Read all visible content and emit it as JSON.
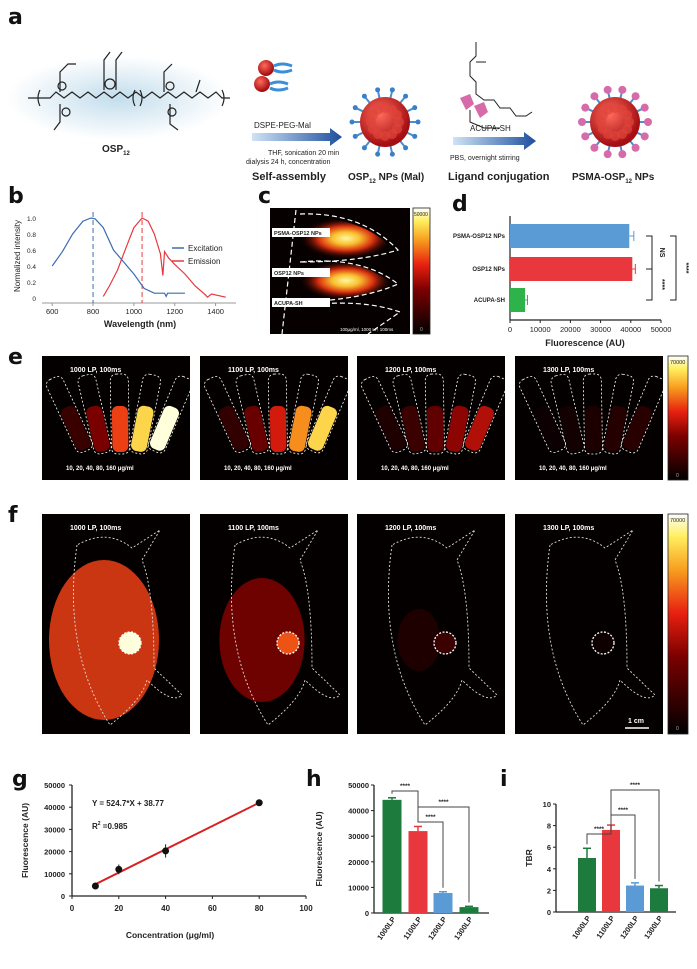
{
  "panels": {
    "a": "a",
    "b": "b",
    "c": "c",
    "d": "d",
    "e": "e",
    "f": "f",
    "g": "g",
    "h": "h",
    "i": "i"
  },
  "scheme": {
    "polymer_label": "OSP",
    "polymer_sub": "12",
    "step1_reagent": "DSPE-PEG-Mal",
    "step1_cond1": "THF, sonication 20 min",
    "step1_cond2": "dialysis 24 h, concentration",
    "step1_name": "Self-assembly",
    "np_mal_label": "OSP",
    "np_mal_sub": "12",
    "np_mal_suffix": " NPs (Mal)",
    "step2_reagent": "ACUPA-SH",
    "step2_cond": "PBS, overnight stirring",
    "step2_name": "Ligand conjugation",
    "final_label": "PSMA-OSP",
    "final_sub": "12",
    "final_suffix": " NPs"
  },
  "panel_c": {
    "labels": [
      "PSMA-OSP12 NPs",
      "OSP12 NPs",
      "ACUPA-SH"
    ],
    "caption": "100μg/ml, 1000 LP, 100ms",
    "colorbar_max": "50000",
    "colorbar_min": "0"
  },
  "panel_e": {
    "titles": [
      "1000 LP, 100ms",
      "1100 LP, 100ms",
      "1200 LP, 100ms",
      "1300 LP, 100ms"
    ],
    "caption": "10, 20, 40, 80, 160 μg/ml",
    "intensity": [
      1.0,
      0.85,
      0.45,
      0.1
    ],
    "colorbar_max": "70000",
    "colorbar_min": "0"
  },
  "panel_f": {
    "titles": [
      "1000 LP, 100ms",
      "1100 LP, 100ms",
      "1200 LP, 100ms",
      "1300 LP, 100ms"
    ],
    "intensity": [
      1.0,
      0.6,
      0.15,
      0.02
    ],
    "scale_bar": "1 cm",
    "colorbar_max": "70000",
    "colorbar_min": "0"
  },
  "colors": {
    "blue": "#3d6cb3",
    "red": "#e8383d",
    "green": "#1e7b3e",
    "lightblue": "#5b9bd5",
    "barGreen": "#2db34a"
  },
  "chart_data": [
    {
      "id": "b",
      "type": "line",
      "xlabel": "Wavelength (nm)",
      "ylabel": "Normalized intensity",
      "xlim": [
        550,
        1500
      ],
      "ylim": [
        0,
        1.05
      ],
      "xticks": [
        600,
        800,
        1000,
        1200,
        1400
      ],
      "yticks": [
        0,
        0.2,
        0.4,
        0.6,
        0.8,
        1.0
      ],
      "ytick_labels": [
        "0",
        "0.2",
        "0.4",
        "0.6",
        "0.8",
        "1.0"
      ],
      "legend": "top-right",
      "vlines": [
        800,
        1040
      ],
      "series": [
        {
          "name": "Excitation",
          "color": "#3d6cb3",
          "x": [
            600,
            650,
            700,
            750,
            790,
            810,
            850,
            900,
            950,
            1000,
            1050,
            1100,
            1150,
            1158,
            1165,
            1250
          ],
          "y": [
            0.4,
            0.58,
            0.8,
            0.96,
            1.0,
            0.99,
            0.88,
            0.6,
            0.45,
            0.3,
            0.12,
            0.06,
            0.06,
            0.02,
            0.06,
            0.06
          ]
        },
        {
          "name": "Emission",
          "color": "#e8383d",
          "x": [
            850,
            880,
            920,
            960,
            1000,
            1040,
            1070,
            1100,
            1130,
            1142,
            1150,
            1170,
            1200,
            1250,
            1300,
            1350,
            1360,
            1380,
            1450
          ],
          "y": [
            0.02,
            0.15,
            0.35,
            0.62,
            0.88,
            1.0,
            0.96,
            0.8,
            0.55,
            0.28,
            0.58,
            0.5,
            0.42,
            0.3,
            0.15,
            0.04,
            0.01,
            0.05,
            0.01
          ]
        }
      ]
    },
    {
      "id": "d",
      "type": "bar",
      "orientation": "horizontal",
      "xlabel": "Fluorescence (AU)",
      "categories": [
        "PSMA-OSP12 NPs",
        "OSP12 NPs",
        "ACUPA-SH"
      ],
      "values": [
        39500,
        40500,
        5000
      ],
      "errors": [
        1500,
        1000,
        800
      ],
      "bar_colors": [
        "#5b9bd5",
        "#e8383d",
        "#2db34a"
      ],
      "xlim": [
        0,
        50000
      ],
      "xticks": [
        0,
        10000,
        20000,
        30000,
        40000,
        50000
      ],
      "significance": [
        {
          "pair": [
            0,
            1
          ],
          "label": "NS"
        },
        {
          "pair": [
            1,
            2
          ],
          "label": "****"
        },
        {
          "pair": [
            0,
            2
          ],
          "label": "****"
        }
      ]
    },
    {
      "id": "g",
      "type": "scatter",
      "xlabel": "Concentration (μg/ml)",
      "ylabel": "Fluorescence (AU)",
      "xlim": [
        0,
        100
      ],
      "ylim": [
        0,
        50000
      ],
      "xticks": [
        0,
        20,
        40,
        60,
        80,
        100
      ],
      "yticks": [
        0,
        10000,
        20000,
        30000,
        40000,
        50000
      ],
      "x": [
        10,
        20,
        40,
        80
      ],
      "y": [
        4500,
        12000,
        20300,
        42000
      ],
      "errors": [
        400,
        2200,
        3000,
        500
      ],
      "fit": {
        "slope": 524.7,
        "intercept": 38.77,
        "color": "#d62020"
      },
      "equation": "Y = 524.7*X + 38.77",
      "r2_label": "R",
      "r2_value": " =0.985"
    },
    {
      "id": "h",
      "type": "bar",
      "ylabel": "Fluorescence (AU)",
      "categories": [
        "1000LP",
        "1100LP",
        "1200LP",
        "1300LP"
      ],
      "values": [
        44200,
        32000,
        7800,
        2300
      ],
      "errors": [
        800,
        1800,
        500,
        300
      ],
      "bar_colors": [
        "#1e7b3e",
        "#e8383d",
        "#5b9bd5",
        "#1e7b3e"
      ],
      "ylim": [
        0,
        50000
      ],
      "yticks": [
        0,
        10000,
        20000,
        30000,
        40000,
        50000
      ],
      "significance": [
        {
          "pair": [
            0,
            1
          ],
          "label": "****"
        },
        {
          "pair": [
            1,
            2
          ],
          "label": "****"
        },
        {
          "pair": [
            1,
            3
          ],
          "label": "****"
        }
      ]
    },
    {
      "id": "i",
      "type": "bar",
      "ylabel": "TBR",
      "categories": [
        "1000LP",
        "1100LP",
        "1200LP",
        "1300LP"
      ],
      "values": [
        5.0,
        7.6,
        2.45,
        2.2
      ],
      "errors": [
        0.9,
        0.45,
        0.25,
        0.25
      ],
      "bar_colors": [
        "#1e7b3e",
        "#e8383d",
        "#5b9bd5",
        "#1e7b3e"
      ],
      "ylim": [
        0,
        10
      ],
      "yticks": [
        0,
        2,
        4,
        6,
        8,
        10
      ],
      "significance": [
        {
          "pair": [
            0,
            1
          ],
          "label": "****"
        },
        {
          "pair": [
            1,
            2
          ],
          "label": "****"
        },
        {
          "pair": [
            1,
            3
          ],
          "label": "****"
        }
      ]
    }
  ]
}
